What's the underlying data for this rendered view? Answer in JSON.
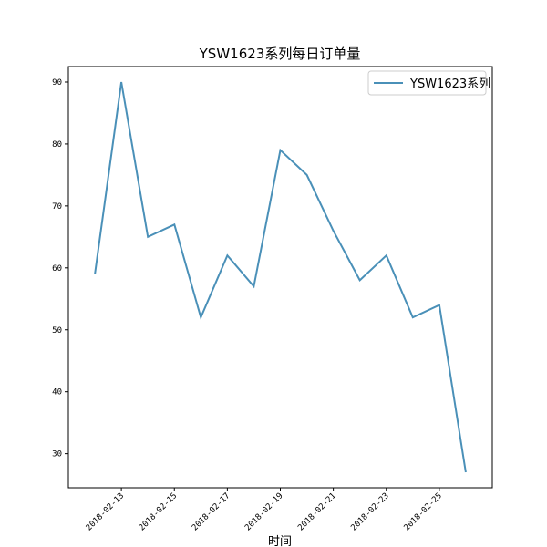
{
  "chart_data": {
    "type": "line",
    "title": "YSW1623系列每日订单量",
    "xlabel": "时间",
    "ylabel": "",
    "x": [
      "2018-02-12",
      "2018-02-13",
      "2018-02-14",
      "2018-02-15",
      "2018-02-16",
      "2018-02-17",
      "2018-02-18",
      "2018-02-19",
      "2018-02-20",
      "2018-02-21",
      "2018-02-22",
      "2018-02-23",
      "2018-02-24",
      "2018-02-25",
      "2018-02-26"
    ],
    "series": [
      {
        "name": "YSW1623系列",
        "values": [
          59,
          90,
          65,
          67,
          52,
          62,
          57,
          79,
          75,
          66,
          58,
          62,
          52,
          54,
          27
        ],
        "color": "#4a90b8"
      }
    ],
    "x_ticks": [
      "2018-02-13",
      "2018-02-15",
      "2018-02-17",
      "2018-02-19",
      "2018-02-21",
      "2018-02-23",
      "2018-02-25"
    ],
    "y_ticks": [
      30,
      40,
      50,
      60,
      70,
      80,
      90
    ],
    "ylim": [
      24.5,
      92.5
    ],
    "xlim": [
      "2018-02-11",
      "2018-02-27"
    ],
    "grid": false,
    "legend_position": "top-right"
  }
}
